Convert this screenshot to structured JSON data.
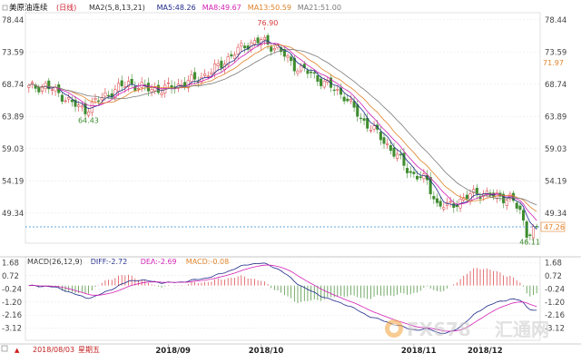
{
  "chart_data": [
    {
      "type": "candlestick",
      "title": "美原油连续",
      "period": "(日线)",
      "indicator_labels": [
        {
          "text": "MA2(5,8,13,21)",
          "color": "#333333"
        },
        {
          "text": "MA5:48.26",
          "color": "#1f2a8a"
        },
        {
          "text": "MA8:49.67",
          "color": "#d21fb4"
        },
        {
          "text": "MA13:50.59",
          "color": "#e0822a"
        },
        {
          "text": "MA21:51.00",
          "color": "#7a7a7a"
        }
      ],
      "yticks": [
        "78.44",
        "73.59",
        "68.74",
        "63.89",
        "59.03",
        "54.19",
        "49.34"
      ],
      "ylim": [
        44.8,
        79.5
      ],
      "current_price": "47.26",
      "marker_price": "71.97",
      "annotations": [
        {
          "text": "76.90",
          "x": 71,
          "y": 76.9
        },
        {
          "text": "64.43",
          "x": 17,
          "y": 64.43
        },
        {
          "text": "46.11",
          "x": 150,
          "y": 46.11
        }
      ],
      "xticks": [
        {
          "label": "2018/09",
          "x": 42
        },
        {
          "label": "2018/10",
          "x": 70
        },
        {
          "label": "2018/11",
          "x": 116
        },
        {
          "label": "2018/12",
          "x": 136
        }
      ],
      "x_count": 154,
      "date_label": "2018/08/03",
      "weekday_label": "星期五",
      "close_anchors": [
        [
          0,
          68.2
        ],
        [
          5,
          68.5
        ],
        [
          10,
          67.0
        ],
        [
          15,
          65.2
        ],
        [
          17,
          64.9
        ],
        [
          20,
          66.1
        ],
        [
          25,
          67.6
        ],
        [
          30,
          68.9
        ],
        [
          35,
          68.1
        ],
        [
          40,
          67.9
        ],
        [
          45,
          68.6
        ],
        [
          50,
          69.4
        ],
        [
          55,
          70.6
        ],
        [
          60,
          72.6
        ],
        [
          65,
          74.6
        ],
        [
          70,
          75.3
        ],
        [
          75,
          74.1
        ],
        [
          80,
          71.5
        ],
        [
          85,
          70.3
        ],
        [
          90,
          68.6
        ],
        [
          95,
          67.0
        ],
        [
          100,
          63.6
        ],
        [
          105,
          61.3
        ],
        [
          110,
          58.4
        ],
        [
          115,
          55.4
        ],
        [
          120,
          54.1
        ],
        [
          123,
          50.6
        ],
        [
          126,
          50.3
        ],
        [
          130,
          51.2
        ],
        [
          135,
          52.5
        ],
        [
          140,
          51.9
        ],
        [
          145,
          51.6
        ],
        [
          148,
          49.6
        ],
        [
          150,
          46.3
        ],
        [
          152,
          46.9
        ],
        [
          153,
          47.26
        ]
      ],
      "colors": {
        "up": "#d8393c",
        "down": "#3f8c2f",
        "ma5": "#1f2a8a",
        "ma8": "#d21fb4",
        "ma13": "#e0822a",
        "ma21": "#7a7a7a"
      }
    },
    {
      "type": "macd",
      "indicator_labels": [
        {
          "text": "MACD(26,12,9)",
          "color": "#333333"
        },
        {
          "text": "DIFF:-2.72",
          "color": "#1f2a8a"
        },
        {
          "text": "DEA:-2.69",
          "color": "#d21fb4"
        },
        {
          "text": "MACD:-0.08",
          "color": "#e0822a"
        }
      ],
      "yticks": [
        "1.68",
        "0.72",
        "-0.24",
        "-1.20",
        "-2.16",
        "-3.12"
      ],
      "ylim": [
        -4.0,
        2.1
      ]
    }
  ],
  "watermark": {
    "left": "FX678",
    "right": "汇通网"
  }
}
